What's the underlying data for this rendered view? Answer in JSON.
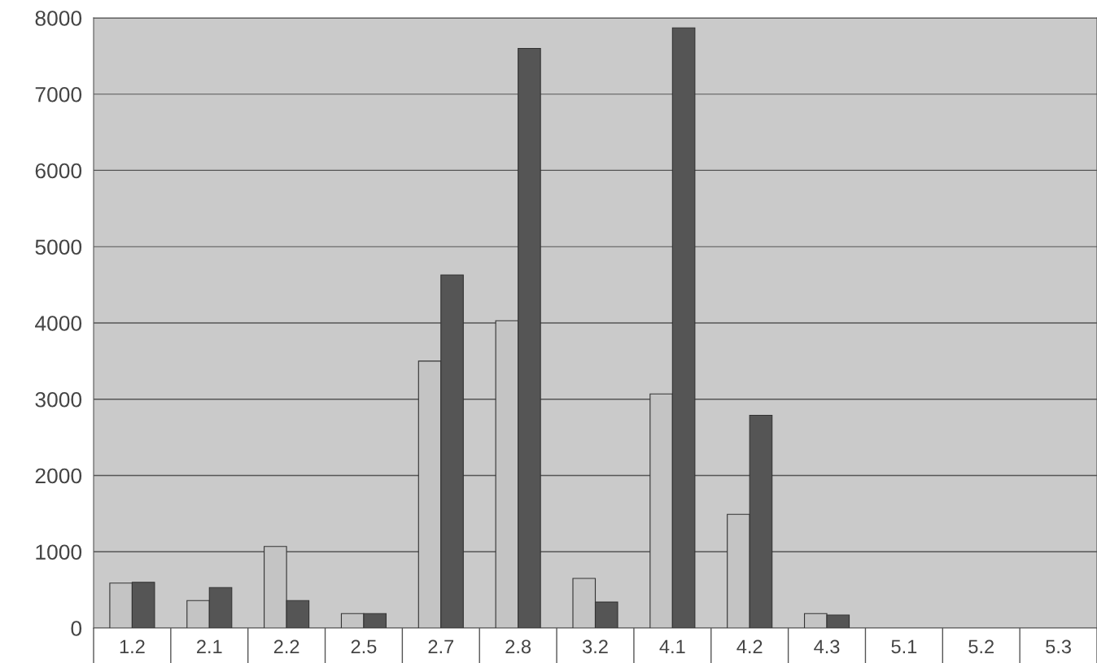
{
  "chart_data": {
    "type": "bar",
    "categories": [
      "1.2",
      "2.1",
      "2.2",
      "2.5",
      "2.7",
      "2.8",
      "3.2",
      "4.1",
      "4.2",
      "4.3",
      "5.1",
      "5.2",
      "5.3"
    ],
    "series": [
      {
        "color": "#c4c4c4",
        "values": [
          590,
          360,
          1070,
          190,
          3500,
          4030,
          650,
          3070,
          1490,
          190,
          null,
          null,
          null
        ]
      },
      {
        "color": "#555555",
        "values": [
          600,
          530,
          360,
          190,
          4630,
          7600,
          340,
          7870,
          2790,
          170,
          null,
          null,
          null
        ]
      }
    ],
    "ylim": [
      0,
      8000
    ],
    "yticks": [
      0,
      1000,
      2000,
      3000,
      4000,
      5000,
      6000,
      7000,
      8000
    ],
    "grid": "y",
    "legend": false
  }
}
